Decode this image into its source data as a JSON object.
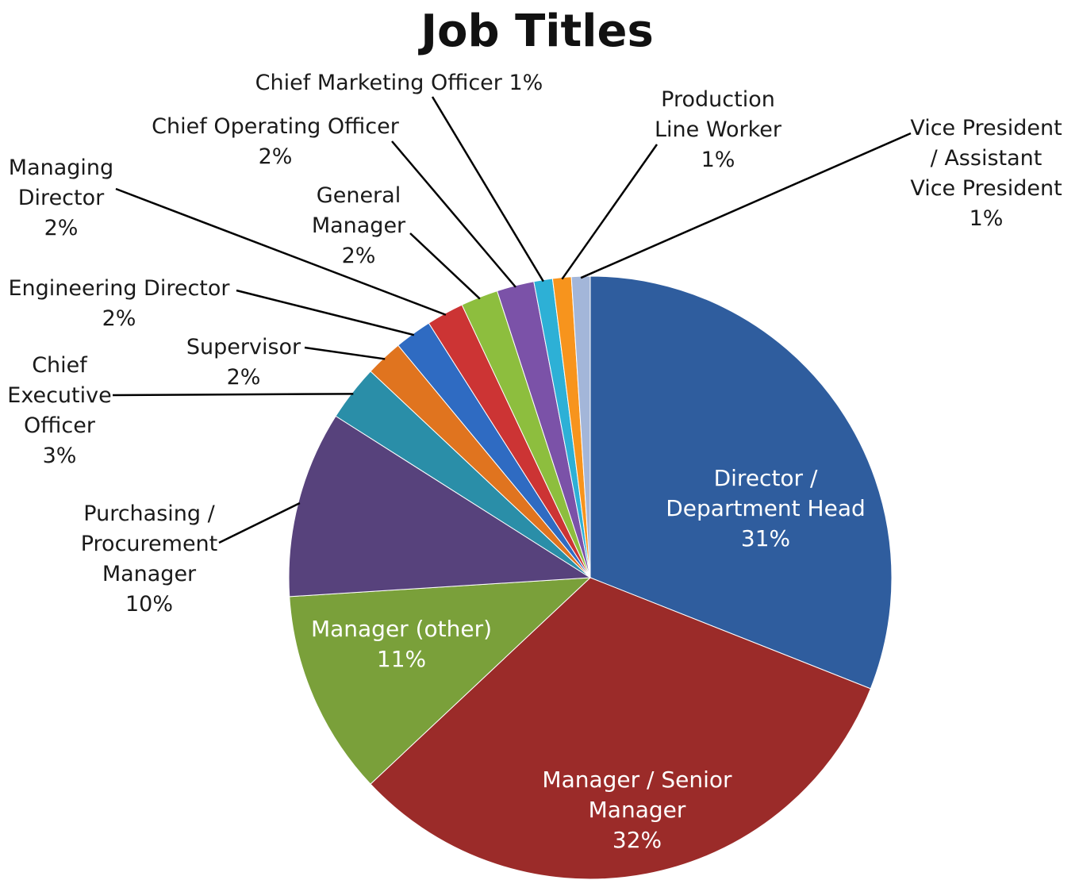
{
  "chart_data": {
    "type": "pie",
    "title": "Job Titles",
    "slices": [
      {
        "label": "Director / Department Head",
        "display": [
          "Director /",
          "Department Head",
          "31%"
        ],
        "value": 31,
        "color": "#2f5d9e",
        "placement": "inside"
      },
      {
        "label": "Manager / Senior Manager",
        "display": [
          "Manager / Senior",
          "Manager",
          "32%"
        ],
        "value": 32,
        "color": "#9b2b29",
        "placement": "inside"
      },
      {
        "label": "Manager (other)",
        "display": [
          "Manager (other)",
          "11%"
        ],
        "value": 11,
        "color": "#7aa03a",
        "placement": "inside"
      },
      {
        "label": "Purchasing / Procurement Manager",
        "display": [
          "Purchasing /",
          "Procurement",
          "Manager",
          "10%"
        ],
        "value": 10,
        "color": "#57427c",
        "placement": "outside"
      },
      {
        "label": "Chief Executive Officer",
        "display": [
          "Chief",
          "Executive",
          "Officer",
          "3%"
        ],
        "value": 3,
        "color": "#2a8ea8",
        "placement": "outside"
      },
      {
        "label": "Supervisor",
        "display": [
          "Supervisor",
          "2%"
        ],
        "value": 2,
        "color": "#e0741f",
        "placement": "outside"
      },
      {
        "label": "Engineering Director",
        "display": [
          "Engineering Director",
          "2%"
        ],
        "value": 2,
        "color": "#2f6bc2",
        "placement": "outside"
      },
      {
        "label": "Managing Director",
        "display": [
          "Managing",
          "Director",
          "2%"
        ],
        "value": 2,
        "color": "#cc3434",
        "placement": "outside"
      },
      {
        "label": "General Manager",
        "display": [
          "General",
          "Manager",
          "2%"
        ],
        "value": 2,
        "color": "#8dbe3e",
        "placement": "outside"
      },
      {
        "label": "Chief Operating Officer",
        "display": [
          "Chief Operating Officer",
          "2%"
        ],
        "value": 2,
        "color": "#7b52a8",
        "placement": "outside"
      },
      {
        "label": "Chief Marketing Officer",
        "display": [
          "Chief Marketing Officer 1%"
        ],
        "value": 1,
        "color": "#2db0d6",
        "placement": "outside"
      },
      {
        "label": "Production Line Worker",
        "display": [
          "Production",
          "Line Worker",
          "1%"
        ],
        "value": 1,
        "color": "#f7941d",
        "placement": "outside"
      },
      {
        "label": "Vice President / Assistant Vice President",
        "display": [
          "Vice President",
          "/ Assistant",
          "Vice President",
          "1%"
        ],
        "value": 1,
        "color": "#a3b6d9",
        "placement": "outside"
      }
    ]
  }
}
